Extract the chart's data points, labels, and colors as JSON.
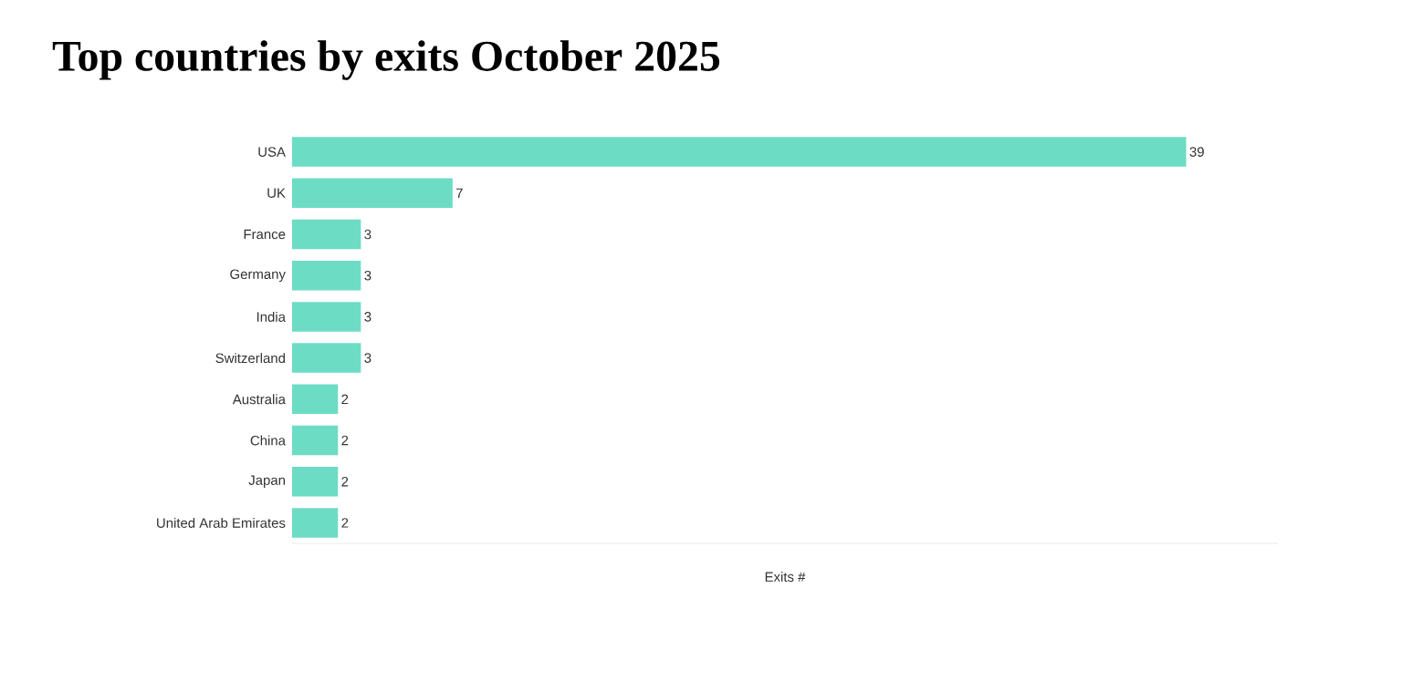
{
  "chart_data": {
    "type": "bar",
    "orientation": "horizontal",
    "title": "Top countries by exits October 2025",
    "xlabel": "Exits #",
    "categories": [
      "USA",
      "UK",
      "France",
      "Germany",
      "India",
      "Switzerland",
      "Australia",
      "China",
      "Japan",
      "United Arab Emirates"
    ],
    "values": [
      39,
      7,
      3,
      3,
      3,
      3,
      2,
      2,
      2,
      2
    ],
    "color": "#6ddcc4",
    "xlim": [
      0,
      43
    ],
    "data_labels": true
  }
}
